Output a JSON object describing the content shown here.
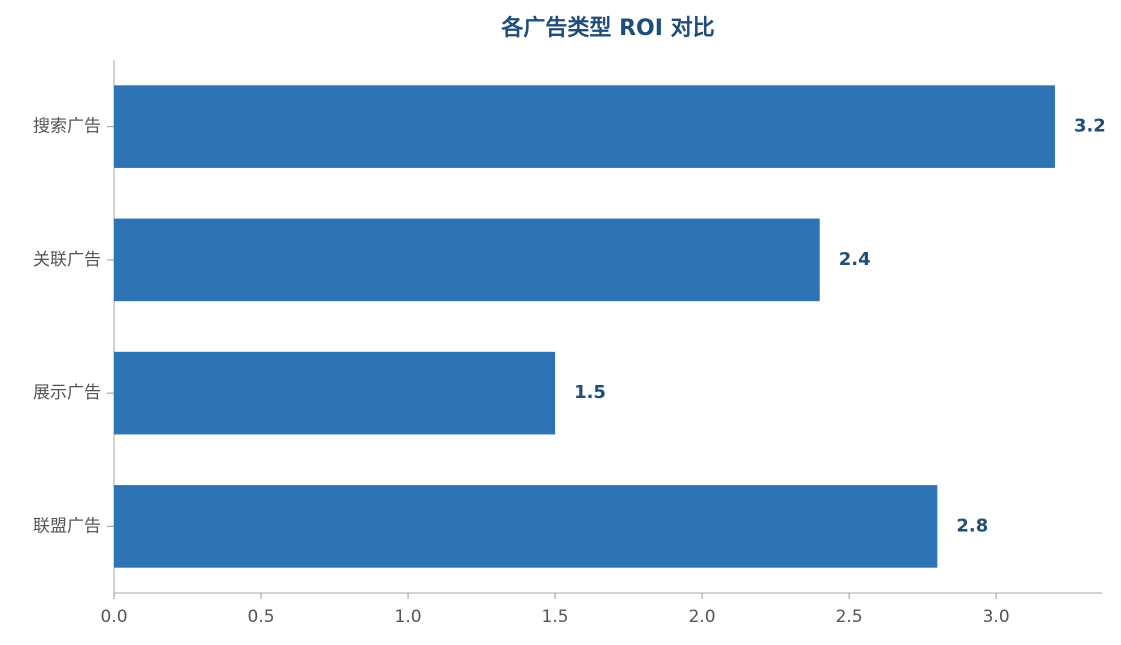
{
  "chart_data": {
    "type": "barh",
    "title": "各广告类型 ROI 对比",
    "categories": [
      "搜索广告",
      "关联广告",
      "展示广告",
      "联盟广告"
    ],
    "values": [
      3.2,
      2.4,
      1.5,
      2.8
    ],
    "color": "#2e74b5",
    "label_color": "#1f4e79",
    "xlim": [
      0,
      3.36
    ],
    "xticks": [
      {
        "value": 0,
        "label": "0.0"
      },
      0.5,
      {
        "value": 1,
        "label": "1.0"
      },
      1.5,
      {
        "value": 2,
        "label": "2.0"
      },
      2.5,
      {
        "value": 3,
        "label": "3.0"
      }
    ]
  }
}
